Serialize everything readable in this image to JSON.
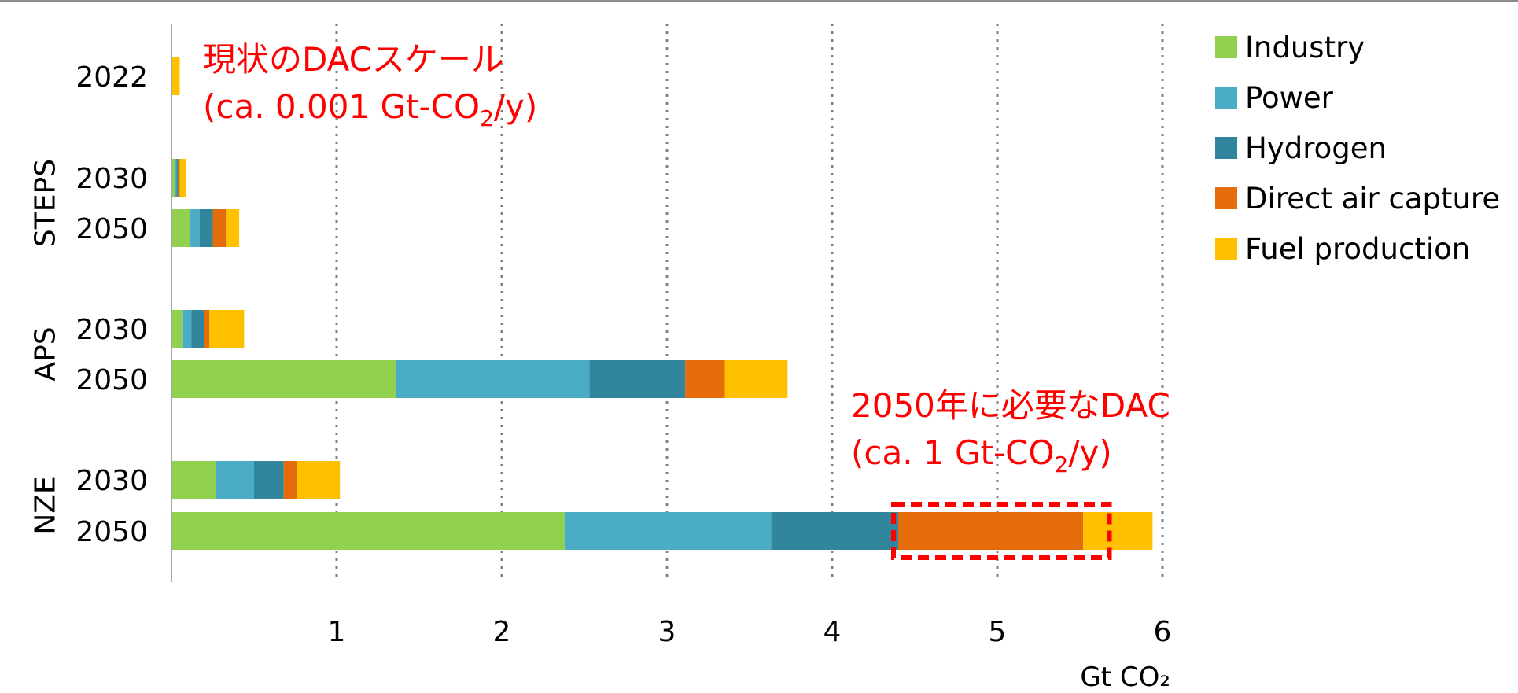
{
  "chart_data": {
    "type": "bar",
    "orientation": "horizontal",
    "stacked": true,
    "xlabel": "Gt CO₂",
    "xlim": [
      0,
      6
    ],
    "x_ticks": [
      1,
      2,
      3,
      4,
      5,
      6
    ],
    "grid": "vertical-dotted",
    "legend_position": "top-right",
    "groups": [
      {
        "label": "",
        "rows": [
          "2022"
        ]
      },
      {
        "label": "STEPS",
        "rows": [
          "2030",
          "2050"
        ]
      },
      {
        "label": "APS",
        "rows": [
          "2030",
          "2050"
        ]
      },
      {
        "label": "NZE",
        "rows": [
          "2030",
          "2050"
        ]
      }
    ],
    "categories": [
      "2022",
      "2030",
      "2050",
      "2030",
      "2050",
      "2030",
      "2050"
    ],
    "series": [
      {
        "name": "Industry",
        "color": "#92d050",
        "values": [
          0,
          0.02,
          0.11,
          0.07,
          1.36,
          0.27,
          2.38
        ]
      },
      {
        "name": "Power",
        "color": "#4bacc6",
        "values": [
          0,
          0.01,
          0.06,
          0.05,
          1.17,
          0.23,
          1.25
        ]
      },
      {
        "name": "Hydrogen",
        "color": "#31859c",
        "values": [
          0,
          0.01,
          0.08,
          0.08,
          0.58,
          0.18,
          0.77
        ]
      },
      {
        "name": "Direct air capture",
        "color": "#e46c0a",
        "values": [
          0,
          0.01,
          0.08,
          0.03,
          0.24,
          0.08,
          1.12
        ]
      },
      {
        "name": "Fuel production",
        "color": "#ffc000",
        "values": [
          0.05,
          0.04,
          0.08,
          0.21,
          0.38,
          0.26,
          0.42
        ]
      }
    ],
    "annotations": [
      {
        "line1": "現状のDACスケール",
        "line2_pre": "(ca. 0.001 Gt-CO",
        "line2_sub": "2",
        "line2_post": "/y)",
        "color": "#ff0000"
      },
      {
        "line1": "2050年に必要なDAC",
        "line2_pre": "(ca. 1 Gt-CO",
        "line2_sub": "2",
        "line2_post": "/y)",
        "color": "#ff0000"
      }
    ],
    "highlight_box": {
      "row": 6,
      "from": 4.4,
      "to": 5.65,
      "color": "#ff0000"
    }
  }
}
